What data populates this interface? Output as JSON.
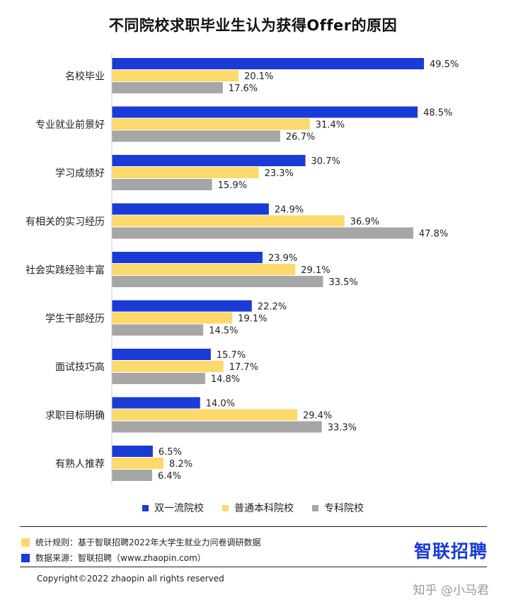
{
  "chart_data": {
    "type": "bar",
    "orientation": "horizontal",
    "title": "不同院校求职毕业生认为获得Offer的原因",
    "categories": [
      "名校毕业",
      "专业就业前景好",
      "学习成绩好",
      "有相关的实习经历",
      "社会实践经验丰富",
      "学生干部经历",
      "面试技巧高",
      "求职目标明确",
      "有熟人推荐"
    ],
    "series": [
      {
        "name": "双一流院校",
        "color": "#1a3bd6",
        "values": [
          49.5,
          48.5,
          30.7,
          24.9,
          23.9,
          22.2,
          15.7,
          14.0,
          6.5
        ]
      },
      {
        "name": "普通本科院校",
        "color": "#fcd96b",
        "values": [
          20.1,
          31.4,
          23.3,
          36.9,
          29.1,
          19.1,
          17.7,
          29.4,
          8.2
        ]
      },
      {
        "name": "专科院校",
        "color": "#a6a6a6",
        "values": [
          17.6,
          26.7,
          15.9,
          47.8,
          33.5,
          14.5,
          14.8,
          33.3,
          6.4
        ]
      }
    ],
    "value_suffix": "%",
    "xlim": [
      0,
      55
    ],
    "grid": false,
    "legend_position": "bottom"
  },
  "footer": {
    "rule_label": "统计规则：基于智联招聘2022年大学生就业力问卷调研数据",
    "rule_color": "#fcd96b",
    "source_label": "数据来源：智联招聘（www.zhaopin.com）",
    "source_color": "#1a3bd6",
    "brand": "智联招聘",
    "copyright": "Copyright©2022 zhaopin all rights reserved",
    "watermark": "知乎 @小马君"
  }
}
